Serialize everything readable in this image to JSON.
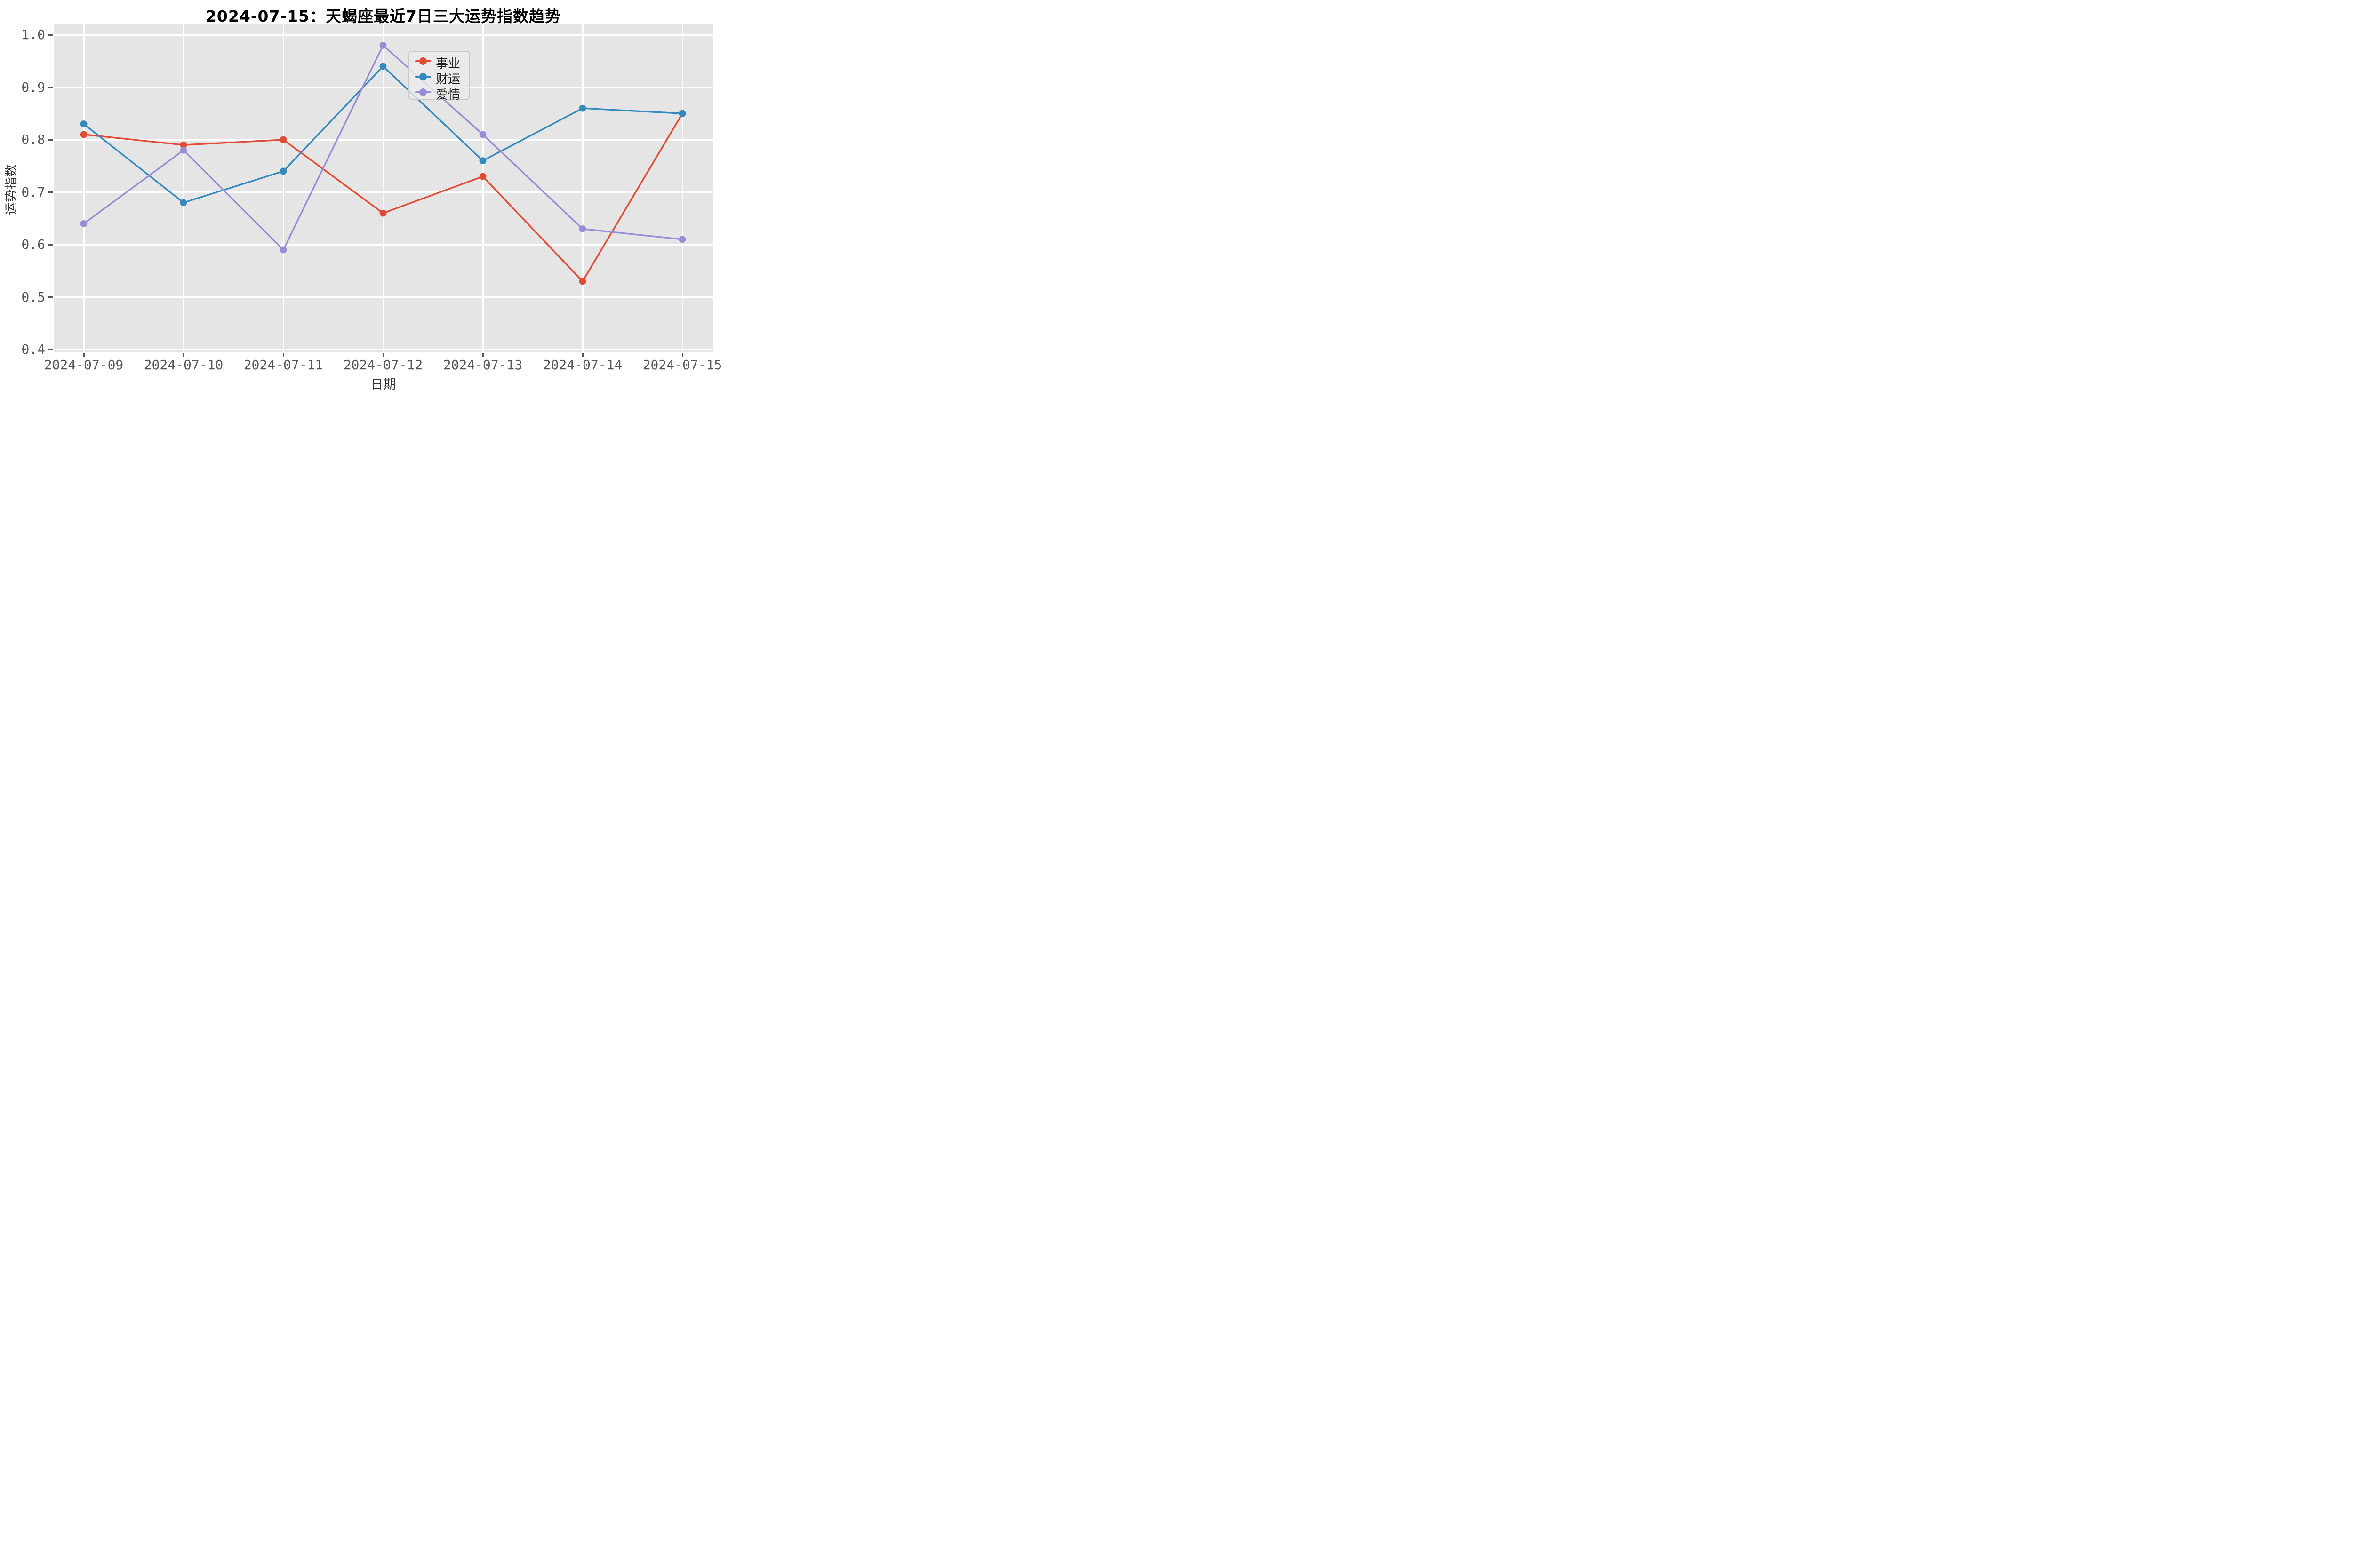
{
  "title": "2024-07-15：天蝎座最近7日三大运势指数趋势",
  "axes": {
    "xlabel": "日期",
    "ylabel": "运势指数",
    "y_tick_labels": [
      "1.0",
      "0.9",
      "0.8",
      "0.7",
      "0.6",
      "0.5",
      "0.4"
    ],
    "x_tick_labels": [
      "2024-07-09",
      "2024-07-10",
      "2024-07-11",
      "2024-07-12",
      "2024-07-13",
      "2024-07-14",
      "2024-07-15"
    ]
  },
  "colors": {
    "plot_background": "#e5e5e5",
    "gridline": "#ffffff",
    "tick_text": "#555555",
    "career_red": "#E24A33",
    "wealth_blue": "#348ABD",
    "love_purple": "#988ED5"
  },
  "chart_data": {
    "type": "line",
    "title": "2024-07-15：天蝎座最近7日三大运势指数趋势",
    "xlabel": "日期",
    "ylabel": "运势指数",
    "categories": [
      "2024-07-09",
      "2024-07-10",
      "2024-07-11",
      "2024-07-12",
      "2024-07-13",
      "2024-07-14",
      "2024-07-15"
    ],
    "series": [
      {
        "name": "事业",
        "key": "career",
        "color": "#E24A33",
        "values": [
          0.81,
          0.79,
          0.8,
          0.66,
          0.73,
          0.53,
          0.85
        ]
      },
      {
        "name": "财运",
        "key": "wealth",
        "color": "#348ABD",
        "values": [
          0.83,
          0.68,
          0.74,
          0.94,
          0.76,
          0.86,
          0.85
        ]
      },
      {
        "name": "爱情",
        "key": "love",
        "color": "#988ED5",
        "values": [
          0.64,
          0.78,
          0.59,
          0.98,
          0.81,
          0.63,
          0.61
        ]
      }
    ],
    "ylim": [
      0.4,
      1.02
    ],
    "y_ticks": [
      1.0,
      0.9,
      0.8,
      0.7,
      0.6,
      0.5,
      0.4
    ],
    "grid": true,
    "marker": "circle",
    "legend_position": "upper center",
    "legend_entries": [
      "事业",
      "财运",
      "爱情"
    ]
  }
}
